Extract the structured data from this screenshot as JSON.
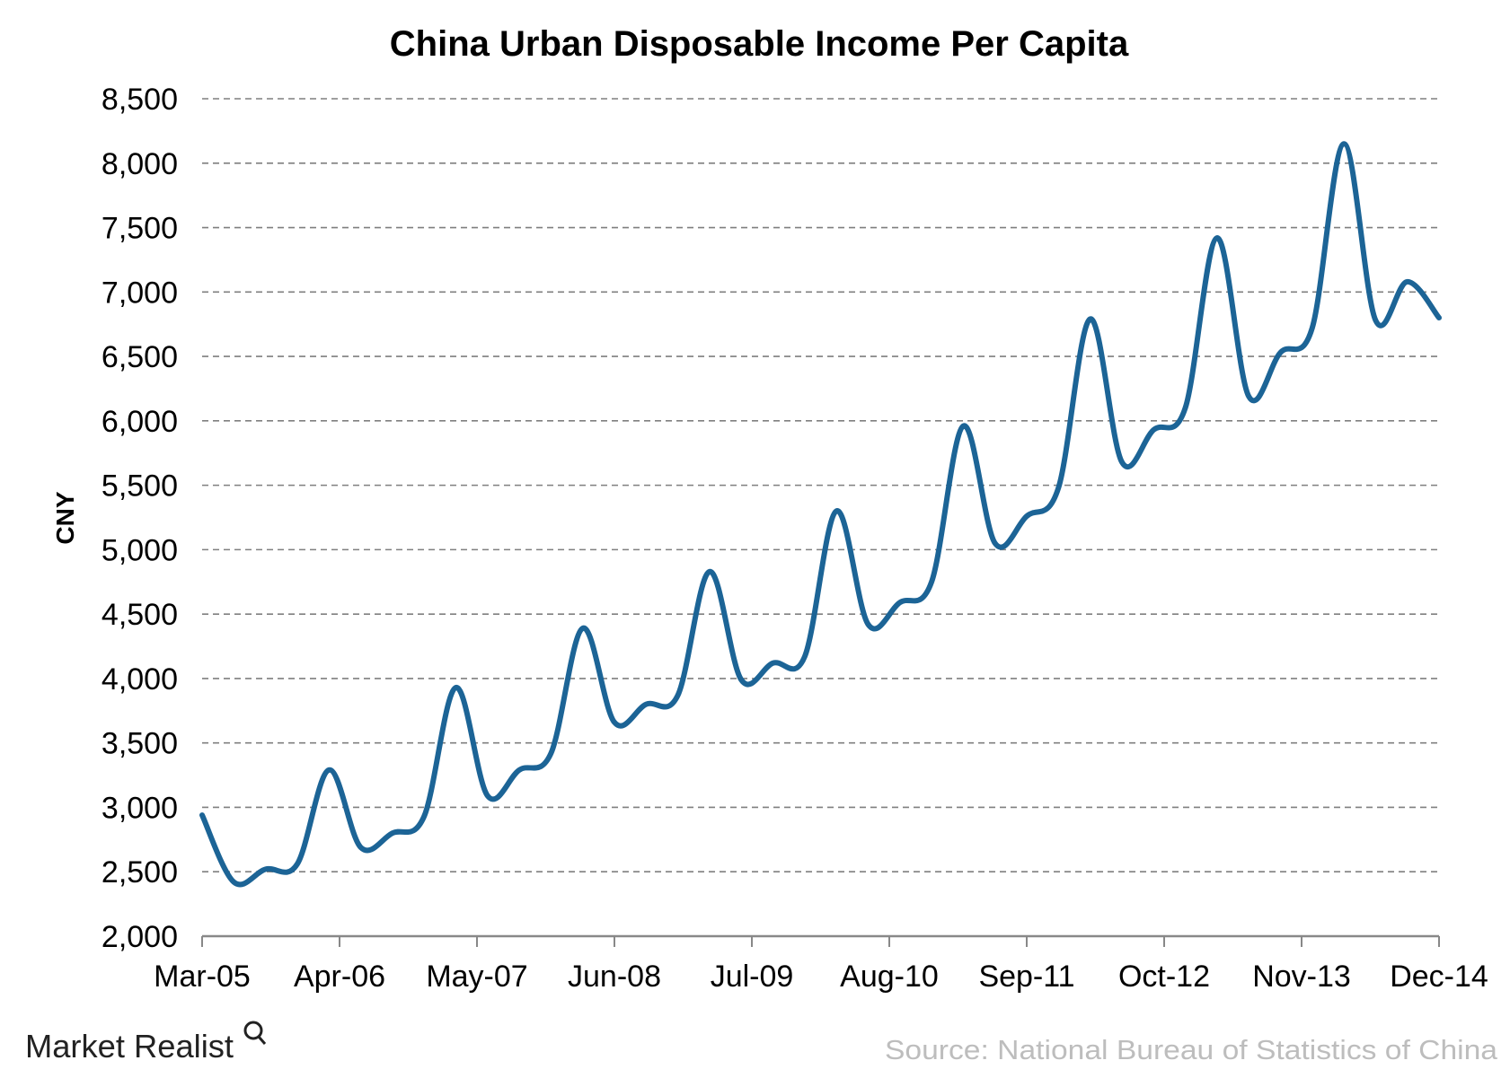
{
  "chart_data": {
    "type": "line",
    "title": "China Urban Disposable Income Per Capita",
    "xlabel": "",
    "ylabel": "CNY",
    "x_tick_labels": [
      "Mar-05",
      "Apr-06",
      "May-07",
      "Jun-08",
      "Jul-09",
      "Aug-10",
      "Sep-11",
      "Oct-12",
      "Nov-13",
      "Dec-14"
    ],
    "y_tick_labels": [
      "2,000",
      "2,500",
      "3,000",
      "3,500",
      "4,000",
      "4,500",
      "5,000",
      "5,500",
      "6,000",
      "6,500",
      "7,000",
      "7,500",
      "8,000",
      "8,500"
    ],
    "ylim": [
      2000,
      8500
    ],
    "xlim": [
      "Mar-05",
      "Dec-14"
    ],
    "grid": "horizontal dashed",
    "line_color": "#1c6496",
    "x": [
      "Mar-05",
      "Jun-05",
      "Sep-05",
      "Dec-05",
      "Mar-06",
      "Jun-06",
      "Sep-06",
      "Dec-06",
      "Mar-07",
      "Jun-07",
      "Sep-07",
      "Dec-07",
      "Mar-08",
      "Jun-08",
      "Sep-08",
      "Dec-08",
      "Mar-09",
      "Jun-09",
      "Sep-09",
      "Dec-09",
      "Mar-10",
      "Jun-10",
      "Sep-10",
      "Dec-10",
      "Mar-11",
      "Jun-11",
      "Sep-11",
      "Dec-11",
      "Mar-12",
      "Jun-12",
      "Sep-12",
      "Dec-12",
      "Mar-13",
      "Jun-13",
      "Sep-13",
      "Dec-13",
      "Mar-14",
      "Jun-14",
      "Sep-14",
      "Dec-14"
    ],
    "values": [
      2940,
      2420,
      2520,
      2560,
      3290,
      2690,
      2800,
      2930,
      3930,
      3090,
      3290,
      3420,
      4390,
      3660,
      3800,
      3870,
      4830,
      3990,
      4120,
      4170,
      5300,
      4420,
      4590,
      4750,
      5960,
      5050,
      5260,
      5480,
      6790,
      5680,
      5930,
      6100,
      7420,
      6190,
      6530,
      6720,
      8150,
      6780,
      7080,
      6800
    ]
  },
  "source": "Source: National Bureau of Statistics of China",
  "logo": "Market Realist"
}
